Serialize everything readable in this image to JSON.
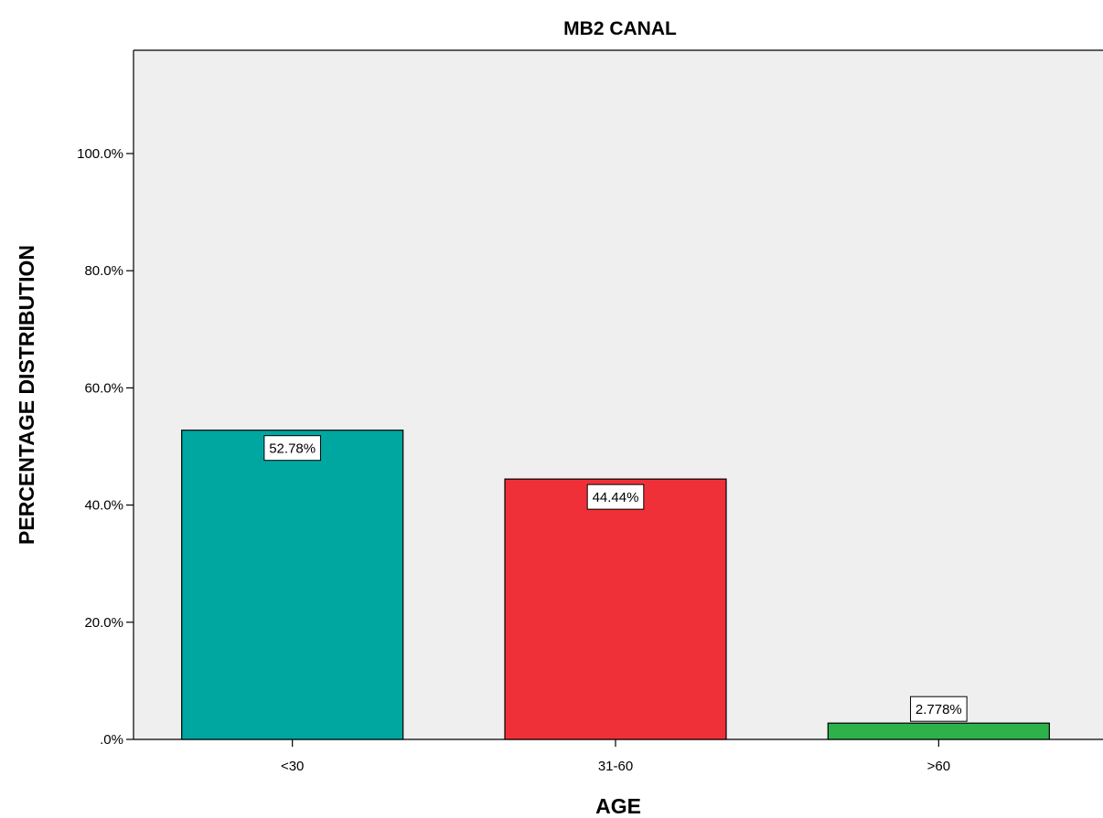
{
  "chart_data": {
    "type": "bar",
    "title": "MB2 CANAL",
    "xlabel": "AGE",
    "ylabel": "PERCENTAGE DISTRIBUTION",
    "categories": [
      "<30",
      "31-60",
      ">60"
    ],
    "values": [
      52.78,
      44.44,
      2.778
    ],
    "data_labels": [
      "52.78%",
      "44.44%",
      "2.778%"
    ],
    "colors": [
      "#00a6a0",
      "#f03038",
      "#2db14b"
    ],
    "ylim": [
      0,
      115
    ],
    "yticks": [
      {
        "value": 0,
        "label": ".0%"
      },
      {
        "value": 20,
        "label": "20.0%"
      },
      {
        "value": 40,
        "label": "40.0%"
      },
      {
        "value": 60,
        "label": "60.0%"
      },
      {
        "value": 80,
        "label": "80.0%"
      },
      {
        "value": 100,
        "label": "100.0%"
      }
    ],
    "grid": false,
    "plot_background": "#efefef"
  }
}
